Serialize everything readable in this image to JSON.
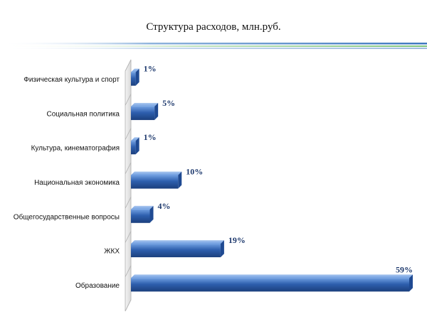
{
  "chart_data": {
    "type": "bar",
    "orientation": "horizontal",
    "title": "Структура расходов,  млн.руб.",
    "xlabel": "",
    "ylabel": "",
    "xlim": [
      0,
      59
    ],
    "grid": false,
    "legend": "none",
    "bar_color": "#2e5fae",
    "categories": [
      "Физическая культура и спорт",
      "Социальная политика",
      "Культура,  кинематография",
      "Национальная экономика",
      "Общегосударственные вопросы",
      "ЖКХ",
      "Образование"
    ],
    "values": [
      1,
      5,
      1,
      10,
      4,
      19,
      59
    ],
    "data_labels": [
      "1%",
      "5%",
      "1%",
      "10%",
      "4%",
      "19%",
      "59%"
    ]
  }
}
